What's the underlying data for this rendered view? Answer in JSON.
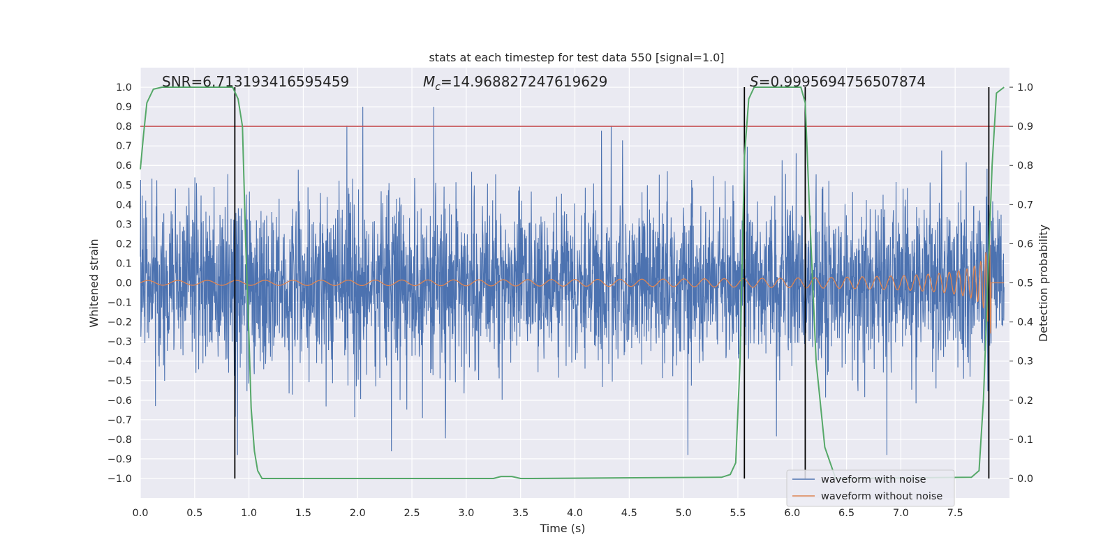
{
  "chart_data": {
    "type": "line",
    "title": "stats at each timestep for test data 550 [signal=1.0]",
    "xlabel": "Time (s)",
    "ylabel_left": "Whitened strain",
    "ylabel_right": "Detection probability",
    "xlim": [
      0.0,
      8.0
    ],
    "ylim_left": [
      -1.1,
      1.1
    ],
    "ylim_right": [
      -0.05,
      1.05
    ],
    "x_ticks": [
      "0.0",
      "0.5",
      "1.0",
      "1.5",
      "2.0",
      "2.5",
      "3.0",
      "3.5",
      "4.0",
      "4.5",
      "5.0",
      "5.5",
      "6.0",
      "6.5",
      "7.0",
      "7.5"
    ],
    "y_left_ticks": [
      "1.0",
      "0.9",
      "0.8",
      "0.7",
      "0.6",
      "0.5",
      "0.4",
      "0.3",
      "0.2",
      "0.1",
      "0.0",
      "-0.1",
      "-0.2",
      "-0.3",
      "-0.4",
      "-0.5",
      "-0.6",
      "-0.7",
      "-0.8",
      "-0.9",
      "-1.0"
    ],
    "y_right_ticks": [
      "1.0",
      "0.9",
      "0.8",
      "0.7",
      "0.6",
      "0.5",
      "0.4",
      "0.3",
      "0.2",
      "0.1",
      "0.0"
    ],
    "annotations": {
      "snr": "SNR=6.713193416595459",
      "mc_symbol": "M",
      "mc_sub": "c",
      "mc_value": "=14.968827247619629",
      "s_symbol": "S",
      "s_value": "=0.9995694756507874"
    },
    "threshold_probability": 0.9,
    "vertical_markers_s": [
      0.87,
      5.56,
      6.12,
      7.81
    ],
    "series": [
      {
        "name": "waveform with noise",
        "color": "#4c72b0",
        "axis": "left",
        "description": "noisy whitened strain, peaks up to ~0.9 and down to ~-0.86"
      },
      {
        "name": "waveform without noise",
        "color": "#dd8452",
        "axis": "left",
        "description": "chirp signal, amplitude growing to ~0.25 near 7.8 s"
      },
      {
        "name": "Detection probability",
        "color": "#55a868",
        "axis": "right",
        "x": [
          0.0,
          0.03,
          0.06,
          0.12,
          0.2,
          0.85,
          0.9,
          0.94,
          0.97,
          1.0,
          1.02,
          1.05,
          1.08,
          1.12,
          1.2,
          3.25,
          3.32,
          3.42,
          3.5,
          3.6,
          5.35,
          5.43,
          5.48,
          5.52,
          5.56,
          5.6,
          5.65,
          5.7,
          6.08,
          6.12,
          6.16,
          6.22,
          6.3,
          6.4,
          6.45,
          7.65,
          7.72,
          7.76,
          7.8,
          7.84,
          7.88,
          7.95
        ],
        "y": [
          0.79,
          0.88,
          0.96,
          0.995,
          1.0,
          1.0,
          0.97,
          0.9,
          0.6,
          0.36,
          0.18,
          0.07,
          0.02,
          0.0,
          0.0,
          0.0,
          0.005,
          0.005,
          0.0,
          0.0,
          0.003,
          0.01,
          0.04,
          0.3,
          0.82,
          0.97,
          1.0,
          1.0,
          1.0,
          0.96,
          0.68,
          0.3,
          0.08,
          0.0,
          0.0,
          0.003,
          0.02,
          0.2,
          0.5,
          0.8,
          0.985,
          1.0
        ]
      }
    ],
    "legend": {
      "placement": "lower-right",
      "entries": [
        {
          "label": "waveform with noise",
          "color": "#4c72b0"
        },
        {
          "label": "waveform without noise",
          "color": "#dd8452"
        }
      ]
    },
    "colors": {
      "plot_background": "#eaeaf2",
      "grid": "#ffffff",
      "threshold_line": "#c44e52",
      "marker_line": "#000000"
    }
  }
}
